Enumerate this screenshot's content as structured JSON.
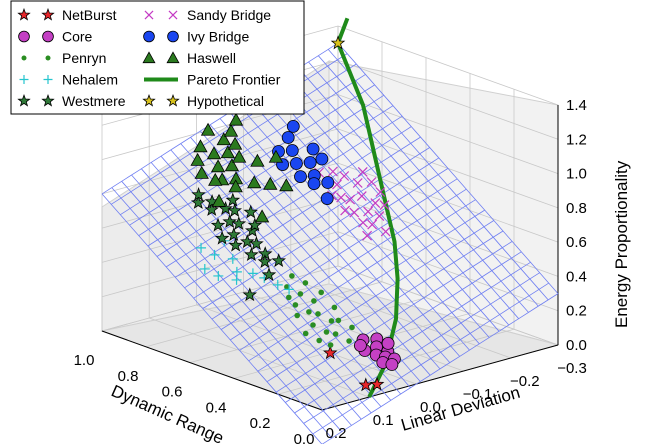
{
  "chart_data": {
    "type": "scatter",
    "projection": "3d",
    "x_axis": {
      "label": "Dynamic Range",
      "ticks": [
        1.0,
        0.8,
        0.6,
        0.4,
        0.2,
        0.0
      ],
      "tick_labels": [
        "1.0",
        "0.8",
        "0.6",
        "0.4",
        "0.2",
        "0.0"
      ],
      "range": [
        0.0,
        1.0
      ]
    },
    "y_axis": {
      "label": "Linear Deviation",
      "ticks": [
        0.2,
        0.1,
        0.0,
        -0.1,
        -0.2,
        -0.3
      ],
      "tick_labels": [
        "0.2",
        "0.1",
        "0.0",
        "−0.1",
        "−0.2",
        "−0.3"
      ],
      "range": [
        -0.3,
        0.2
      ]
    },
    "z_axis": {
      "label": "Energy Proportionality",
      "ticks": [
        0.0,
        0.2,
        0.4,
        0.6,
        0.8,
        1.0,
        1.2,
        1.4
      ],
      "tick_labels": [
        "0.0",
        "0.2",
        "0.4",
        "0.6",
        "0.8",
        "1.0",
        "1.2",
        "1.4"
      ],
      "range": [
        0.0,
        1.4
      ]
    },
    "grid": true,
    "legend_position": "top-left",
    "surface": {
      "color": "#6f7ff2",
      "note": "fitted plane z = x - y"
    },
    "series": [
      {
        "name": "NetBurst",
        "marker": "star",
        "color": "#e8262b",
        "points": [
          [
            0.08,
            0.07,
            0.01
          ],
          [
            0.22,
            0.08,
            0.14
          ],
          [
            0.05,
            0.06,
            0.02
          ]
        ]
      },
      {
        "name": "Core",
        "marker": "circle",
        "color": "#c440c4",
        "points": [
          [
            0.2,
            0.02,
            0.18
          ],
          [
            0.18,
            0.0,
            0.18
          ],
          [
            0.16,
            0.01,
            0.15
          ],
          [
            0.17,
            0.03,
            0.14
          ],
          [
            0.14,
            0.02,
            0.12
          ],
          [
            0.13,
            0.0,
            0.13
          ],
          [
            0.12,
            0.01,
            0.11
          ],
          [
            0.11,
            0.02,
            0.09
          ],
          [
            0.1,
            0.0,
            0.1
          ],
          [
            0.15,
            -0.01,
            0.16
          ],
          [
            0.19,
            0.03,
            0.16
          ],
          [
            0.09,
            0.01,
            0.08
          ]
        ]
      },
      {
        "name": "Penryn",
        "marker": "dot",
        "color": "#2a8d22",
        "points": [
          [
            0.42,
            0.05,
            0.37
          ],
          [
            0.4,
            0.07,
            0.33
          ],
          [
            0.38,
            0.04,
            0.34
          ],
          [
            0.36,
            0.06,
            0.3
          ],
          [
            0.34,
            0.05,
            0.29
          ],
          [
            0.32,
            0.07,
            0.25
          ],
          [
            0.3,
            0.04,
            0.26
          ],
          [
            0.28,
            0.06,
            0.22
          ],
          [
            0.26,
            0.05,
            0.21
          ],
          [
            0.24,
            0.07,
            0.17
          ],
          [
            0.22,
            0.04,
            0.18
          ],
          [
            0.44,
            0.03,
            0.41
          ],
          [
            0.46,
            0.06,
            0.4
          ],
          [
            0.33,
            0.02,
            0.31
          ],
          [
            0.29,
            0.03,
            0.26
          ],
          [
            0.25,
            0.02,
            0.23
          ],
          [
            0.48,
            0.04,
            0.44
          ],
          [
            0.37,
            0.08,
            0.29
          ],
          [
            0.31,
            0.09,
            0.22
          ],
          [
            0.27,
            0.08,
            0.19
          ],
          [
            0.43,
            0.07,
            0.36
          ],
          [
            0.39,
            0.02,
            0.37
          ]
        ]
      },
      {
        "name": "Nehalem",
        "marker": "plus",
        "color": "#25c5ce",
        "points": [
          [
            0.62,
            0.1,
            0.52
          ],
          [
            0.66,
            0.12,
            0.54
          ],
          [
            0.58,
            0.11,
            0.47
          ],
          [
            0.55,
            0.09,
            0.46
          ],
          [
            0.7,
            0.13,
            0.57
          ],
          [
            0.52,
            0.08,
            0.44
          ],
          [
            0.6,
            0.14,
            0.46
          ],
          [
            0.68,
            0.09,
            0.59
          ],
          [
            0.48,
            0.07,
            0.41
          ],
          [
            0.64,
            0.15,
            0.49
          ],
          [
            0.56,
            0.12,
            0.44
          ],
          [
            0.45,
            0.06,
            0.39
          ]
        ]
      },
      {
        "name": "Westmere",
        "marker": "star",
        "color": "#2f7a38",
        "points": [
          [
            0.76,
            0.05,
            0.71
          ],
          [
            0.78,
            0.07,
            0.71
          ],
          [
            0.74,
            0.04,
            0.7
          ],
          [
            0.72,
            0.06,
            0.66
          ],
          [
            0.7,
            0.05,
            0.65
          ],
          [
            0.68,
            0.07,
            0.61
          ],
          [
            0.66,
            0.04,
            0.62
          ],
          [
            0.64,
            0.06,
            0.58
          ],
          [
            0.62,
            0.05,
            0.57
          ],
          [
            0.6,
            0.07,
            0.53
          ],
          [
            0.8,
            0.06,
            0.74
          ],
          [
            0.82,
            0.08,
            0.74
          ],
          [
            0.58,
            0.05,
            0.53
          ],
          [
            0.56,
            0.06,
            0.5
          ],
          [
            0.84,
            0.07,
            0.77
          ],
          [
            0.73,
            0.08,
            0.65
          ],
          [
            0.69,
            0.09,
            0.6
          ],
          [
            0.65,
            0.08,
            0.57
          ],
          [
            0.77,
            0.03,
            0.74
          ],
          [
            0.54,
            0.04,
            0.5
          ],
          [
            0.71,
            0.02,
            0.69
          ],
          [
            0.67,
            0.03,
            0.64
          ],
          [
            0.52,
            0.07,
            0.45
          ],
          [
            0.5,
            0.12,
            0.38
          ]
        ]
      },
      {
        "name": "Sandy Bridge",
        "marker": "x",
        "color": "#c43ac4",
        "points": [
          [
            0.6,
            -0.12,
            0.72
          ],
          [
            0.58,
            -0.13,
            0.71
          ],
          [
            0.56,
            -0.11,
            0.67
          ],
          [
            0.54,
            -0.12,
            0.66
          ],
          [
            0.52,
            -0.14,
            0.66
          ],
          [
            0.5,
            -0.12,
            0.62
          ],
          [
            0.62,
            -0.11,
            0.73
          ],
          [
            0.64,
            -0.13,
            0.77
          ],
          [
            0.66,
            -0.12,
            0.78
          ],
          [
            0.48,
            -0.13,
            0.61
          ],
          [
            0.46,
            -0.11,
            0.57
          ],
          [
            0.68,
            -0.14,
            0.82
          ],
          [
            0.7,
            -0.12,
            0.82
          ],
          [
            0.57,
            -0.15,
            0.72
          ],
          [
            0.53,
            -0.16,
            0.69
          ],
          [
            0.61,
            -0.16,
            0.77
          ],
          [
            0.49,
            -0.15,
            0.64
          ],
          [
            0.65,
            -0.15,
            0.8
          ],
          [
            0.44,
            -0.14,
            0.58
          ],
          [
            0.55,
            -0.18,
            0.73
          ],
          [
            0.59,
            -0.18,
            0.77
          ],
          [
            0.63,
            -0.18,
            0.81
          ],
          [
            0.51,
            -0.17,
            0.68
          ]
        ]
      },
      {
        "name": "Ivy Bridge",
        "marker": "circle",
        "color": "#1a46f0",
        "points": [
          [
            0.76,
            -0.1,
            0.86
          ],
          [
            0.74,
            -0.12,
            0.86
          ],
          [
            0.72,
            -0.09,
            0.81
          ],
          [
            0.7,
            -0.11,
            0.81
          ],
          [
            0.78,
            -0.08,
            0.86
          ],
          [
            0.8,
            -0.11,
            0.91
          ],
          [
            0.68,
            -0.1,
            0.78
          ],
          [
            0.82,
            -0.09,
            0.91
          ],
          [
            0.66,
            -0.12,
            0.78
          ],
          [
            0.84,
            -0.12,
            0.96
          ],
          [
            0.73,
            -0.14,
            0.87
          ],
          [
            0.77,
            -0.14,
            0.91
          ],
          [
            0.86,
            -0.14,
            1.0
          ],
          [
            0.62,
            -0.1,
            0.72
          ]
        ]
      },
      {
        "name": "Haswell",
        "marker": "triangle",
        "color": "#2b7a1f",
        "points": [
          [
            0.92,
            0.0,
            0.92
          ],
          [
            0.9,
            -0.02,
            0.92
          ],
          [
            0.88,
            0.01,
            0.87
          ],
          [
            0.86,
            -0.01,
            0.87
          ],
          [
            0.94,
            -0.03,
            0.97
          ],
          [
            0.84,
            0.02,
            0.82
          ],
          [
            0.96,
            0.01,
            0.95
          ],
          [
            0.82,
            0.0,
            0.82
          ],
          [
            0.91,
            -0.04,
            0.95
          ],
          [
            0.87,
            -0.03,
            0.9
          ],
          [
            0.8,
            0.01,
            0.79
          ],
          [
            0.95,
            -0.05,
            1.0
          ],
          [
            0.93,
            0.03,
            0.9
          ],
          [
            0.89,
            0.04,
            0.85
          ],
          [
            0.85,
            0.03,
            0.82
          ],
          [
            0.78,
            -0.02,
            0.8
          ],
          [
            0.97,
            -0.07,
            1.04
          ],
          [
            0.83,
            -0.05,
            0.88
          ],
          [
            0.79,
            0.05,
            0.74
          ],
          [
            0.99,
            -0.02,
            1.01
          ],
          [
            0.81,
            -0.08,
            0.89
          ],
          [
            0.75,
            -0.04,
            0.79
          ],
          [
            0.72,
            -0.06,
            0.78
          ],
          [
            0.68,
            0.01,
            0.67
          ]
        ]
      },
      {
        "name": "Hypothetical",
        "marker": "star",
        "color": "#d8c21c",
        "points": [
          [
            1.0,
            -0.3,
            1.3
          ]
        ]
      },
      {
        "name": "Pareto Frontier",
        "marker": "line",
        "color": "#1f8a1a",
        "points": [
          [
            0.0,
            0.1,
            0.0
          ],
          [
            0.1,
            0.02,
            0.08
          ],
          [
            0.2,
            -0.05,
            0.25
          ],
          [
            0.3,
            -0.1,
            0.4
          ],
          [
            0.4,
            -0.14,
            0.54
          ],
          [
            0.5,
            -0.17,
            0.67
          ],
          [
            0.6,
            -0.2,
            0.8
          ],
          [
            0.7,
            -0.23,
            0.93
          ],
          [
            0.8,
            -0.26,
            1.06
          ],
          [
            0.9,
            -0.28,
            1.18
          ],
          [
            1.0,
            -0.3,
            1.3
          ],
          [
            1.0,
            -0.32,
            1.43
          ]
        ]
      }
    ]
  }
}
